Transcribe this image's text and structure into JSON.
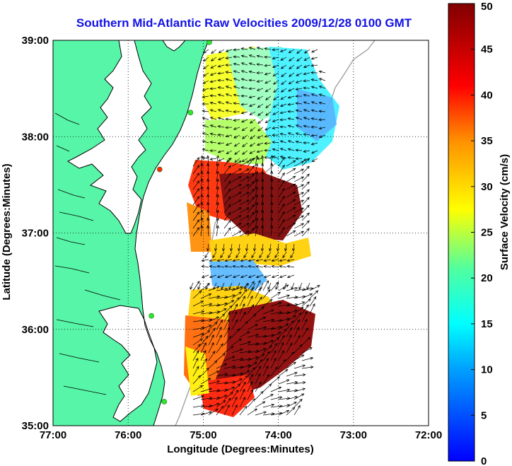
{
  "title": "Southern Mid-Atlantic Raw Velocities 2009/12/28 0100 GMT",
  "colors": {
    "land": "#57f5a8",
    "title": "#1212e6",
    "coastline": "#000000",
    "bathymetry": "#a0a0a0",
    "station_green": "#2ee82e",
    "station_red": "#ff2a00"
  },
  "map": {
    "xlabel": "Longitude (Degrees:Minutes)",
    "ylabel": "Latitude (Degrees:Minutes)",
    "lon_range": [
      -77,
      -72
    ],
    "lat_range": [
      35,
      39
    ],
    "x_ticks": [
      {
        "value": -77,
        "label": "77:00"
      },
      {
        "value": -76,
        "label": "76:00"
      },
      {
        "value": -75,
        "label": "75:00"
      },
      {
        "value": -74,
        "label": "74:00"
      },
      {
        "value": -73,
        "label": "73:00"
      },
      {
        "value": -72,
        "label": "72:00"
      }
    ],
    "y_ticks": [
      {
        "value": 39,
        "label": "39:00"
      },
      {
        "value": 38,
        "label": "38:00"
      },
      {
        "value": 37,
        "label": "37:00"
      },
      {
        "value": 36,
        "label": "36:00"
      },
      {
        "value": 35,
        "label": "35:00"
      }
    ],
    "grid": "dotted"
  },
  "colorbar": {
    "label": "Surface Velocity (cm/s)",
    "range": [
      0,
      50
    ],
    "ticks": [
      {
        "value": 0,
        "label": "0"
      },
      {
        "value": 5,
        "label": "5"
      },
      {
        "value": 10,
        "label": "10"
      },
      {
        "value": 15,
        "label": "15"
      },
      {
        "value": 20,
        "label": "20"
      },
      {
        "value": 25,
        "label": "25"
      },
      {
        "value": 30,
        "label": "30"
      },
      {
        "value": 35,
        "label": "35"
      },
      {
        "value": 40,
        "label": "40"
      },
      {
        "value": 45,
        "label": "45"
      },
      {
        "value": 50,
        "label": "50"
      }
    ]
  },
  "stations": [
    {
      "lon": -74.92,
      "lat": 38.98,
      "status": "green"
    },
    {
      "lon": -75.17,
      "lat": 38.25,
      "status": "green"
    },
    {
      "lon": -75.58,
      "lat": 37.66,
      "status": "red"
    },
    {
      "lon": -75.69,
      "lat": 36.14,
      "status": "green"
    },
    {
      "lon": -75.52,
      "lat": 35.25,
      "status": "green"
    }
  ]
}
